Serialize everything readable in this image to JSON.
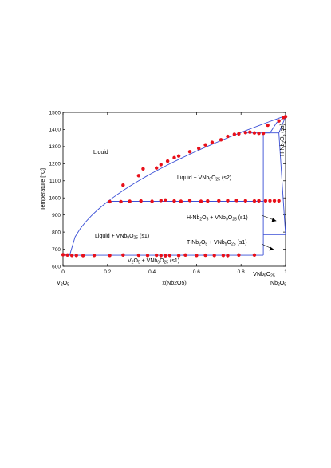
{
  "chart_data": {
    "type": "scatter",
    "title": "",
    "xlabel": "x(Nb2O5)",
    "ylabel": "Temperature [°C]",
    "xlim": [
      0,
      1
    ],
    "ylim": [
      600,
      1500
    ],
    "x_ticks": [
      "0",
      "0.2",
      "0.4",
      "0.6",
      "0.8",
      "1"
    ],
    "y_ticks": [
      "600",
      "700",
      "800",
      "900",
      "1000",
      "1100",
      "1200",
      "1300",
      "1400",
      "1500"
    ],
    "grid": false,
    "colors": {
      "line": "#3a4fd6",
      "points": "#e8101a"
    },
    "end_labels": {
      "left": {
        "main": "V",
        "sub1": "2",
        "mid": "O",
        "sub2": "5"
      },
      "right": {
        "main": "Nb",
        "sub1": "2",
        "mid": "O",
        "sub2": "5"
      },
      "compound": {
        "main": "VNb",
        "sub1": "9",
        "mid": "O",
        "sub2": "25"
      }
    },
    "regions": {
      "liquid": "Liquid",
      "liquid_s2": {
        "pre": "Liquid + VNb",
        "s1": "9",
        "mid": "O",
        "s2": "25",
        "post": " (s2)"
      },
      "liquid_s1": {
        "pre": "Liquid + VNb",
        "s1": "9",
        "mid": "O",
        "s2": "25",
        "post": " (s1)"
      },
      "h_s1": {
        "pre": "H-Nb",
        "s1": "2",
        "mid": "O",
        "s2": "5",
        "mid2": " + VNb",
        "s3": "9",
        "mid3": "O",
        "s4": "25",
        "post": " (s1)"
      },
      "t_s1": {
        "pre": "T-Nb",
        "s1": "2",
        "mid": "O",
        "s2": "5",
        "mid2": " + VNb",
        "s3": "9",
        "mid3": "O",
        "s4": "25",
        "post": " (s1)"
      },
      "v_s1": {
        "pre": "V",
        "s1": "2",
        "mid": "O",
        "s2": "5",
        "mid2": " + VNb",
        "s3": "9",
        "mid3": "O",
        "s4": "25",
        "post": " (s1)"
      },
      "h_ss": {
        "pre": "H-Nb",
        "s1": "2",
        "mid": "O",
        "s2": "5",
        "post": " (ss)"
      }
    },
    "series": [
      {
        "points": [
          [
            0.0,
            668
          ],
          [
            0.02,
            666
          ],
          [
            0.04,
            664
          ],
          [
            0.06,
            664
          ],
          [
            0.09,
            663
          ],
          [
            0.14,
            664
          ],
          [
            0.21,
            664
          ],
          [
            0.27,
            666
          ],
          [
            0.34,
            665
          ],
          [
            0.38,
            664
          ],
          [
            0.42,
            665
          ],
          [
            0.44,
            663
          ],
          [
            0.46,
            662
          ],
          [
            0.48,
            664
          ],
          [
            0.52,
            663
          ],
          [
            0.55,
            666
          ],
          [
            0.6,
            664
          ],
          [
            0.64,
            665
          ],
          [
            0.68,
            664
          ],
          [
            0.72,
            664
          ],
          [
            0.74,
            663
          ],
          [
            0.79,
            666
          ],
          [
            0.86,
            666
          ],
          [
            0.21,
            978
          ],
          [
            0.26,
            978
          ],
          [
            0.3,
            980
          ],
          [
            0.35,
            982
          ],
          [
            0.4,
            980
          ],
          [
            0.44,
            985
          ],
          [
            0.46,
            988
          ],
          [
            0.5,
            982
          ],
          [
            0.53,
            980
          ],
          [
            0.57,
            985
          ],
          [
            0.62,
            980
          ],
          [
            0.65,
            982
          ],
          [
            0.7,
            983
          ],
          [
            0.74,
            984
          ],
          [
            0.78,
            985
          ],
          [
            0.82,
            983
          ],
          [
            0.86,
            982
          ],
          [
            0.88,
            983
          ],
          [
            0.91,
            983
          ],
          [
            0.93,
            983
          ],
          [
            0.95,
            983
          ],
          [
            0.97,
            983
          ],
          [
            0.27,
            1075
          ],
          [
            0.34,
            1130
          ],
          [
            0.36,
            1170
          ],
          [
            0.42,
            1175
          ],
          [
            0.44,
            1195
          ],
          [
            0.47,
            1215
          ],
          [
            0.5,
            1235
          ],
          [
            0.52,
            1245
          ],
          [
            0.57,
            1270
          ],
          [
            0.61,
            1290
          ],
          [
            0.64,
            1310
          ],
          [
            0.67,
            1325
          ],
          [
            0.71,
            1340
          ],
          [
            0.74,
            1360
          ],
          [
            0.77,
            1372
          ],
          [
            0.79,
            1375
          ],
          [
            0.82,
            1382
          ],
          [
            0.84,
            1385
          ],
          [
            0.86,
            1380
          ],
          [
            0.88,
            1378
          ],
          [
            0.9,
            1378
          ],
          [
            0.92,
            1425
          ],
          [
            0.97,
            1450
          ],
          [
            0.99,
            1470
          ],
          [
            1.0,
            1475
          ]
        ]
      }
    ]
  }
}
